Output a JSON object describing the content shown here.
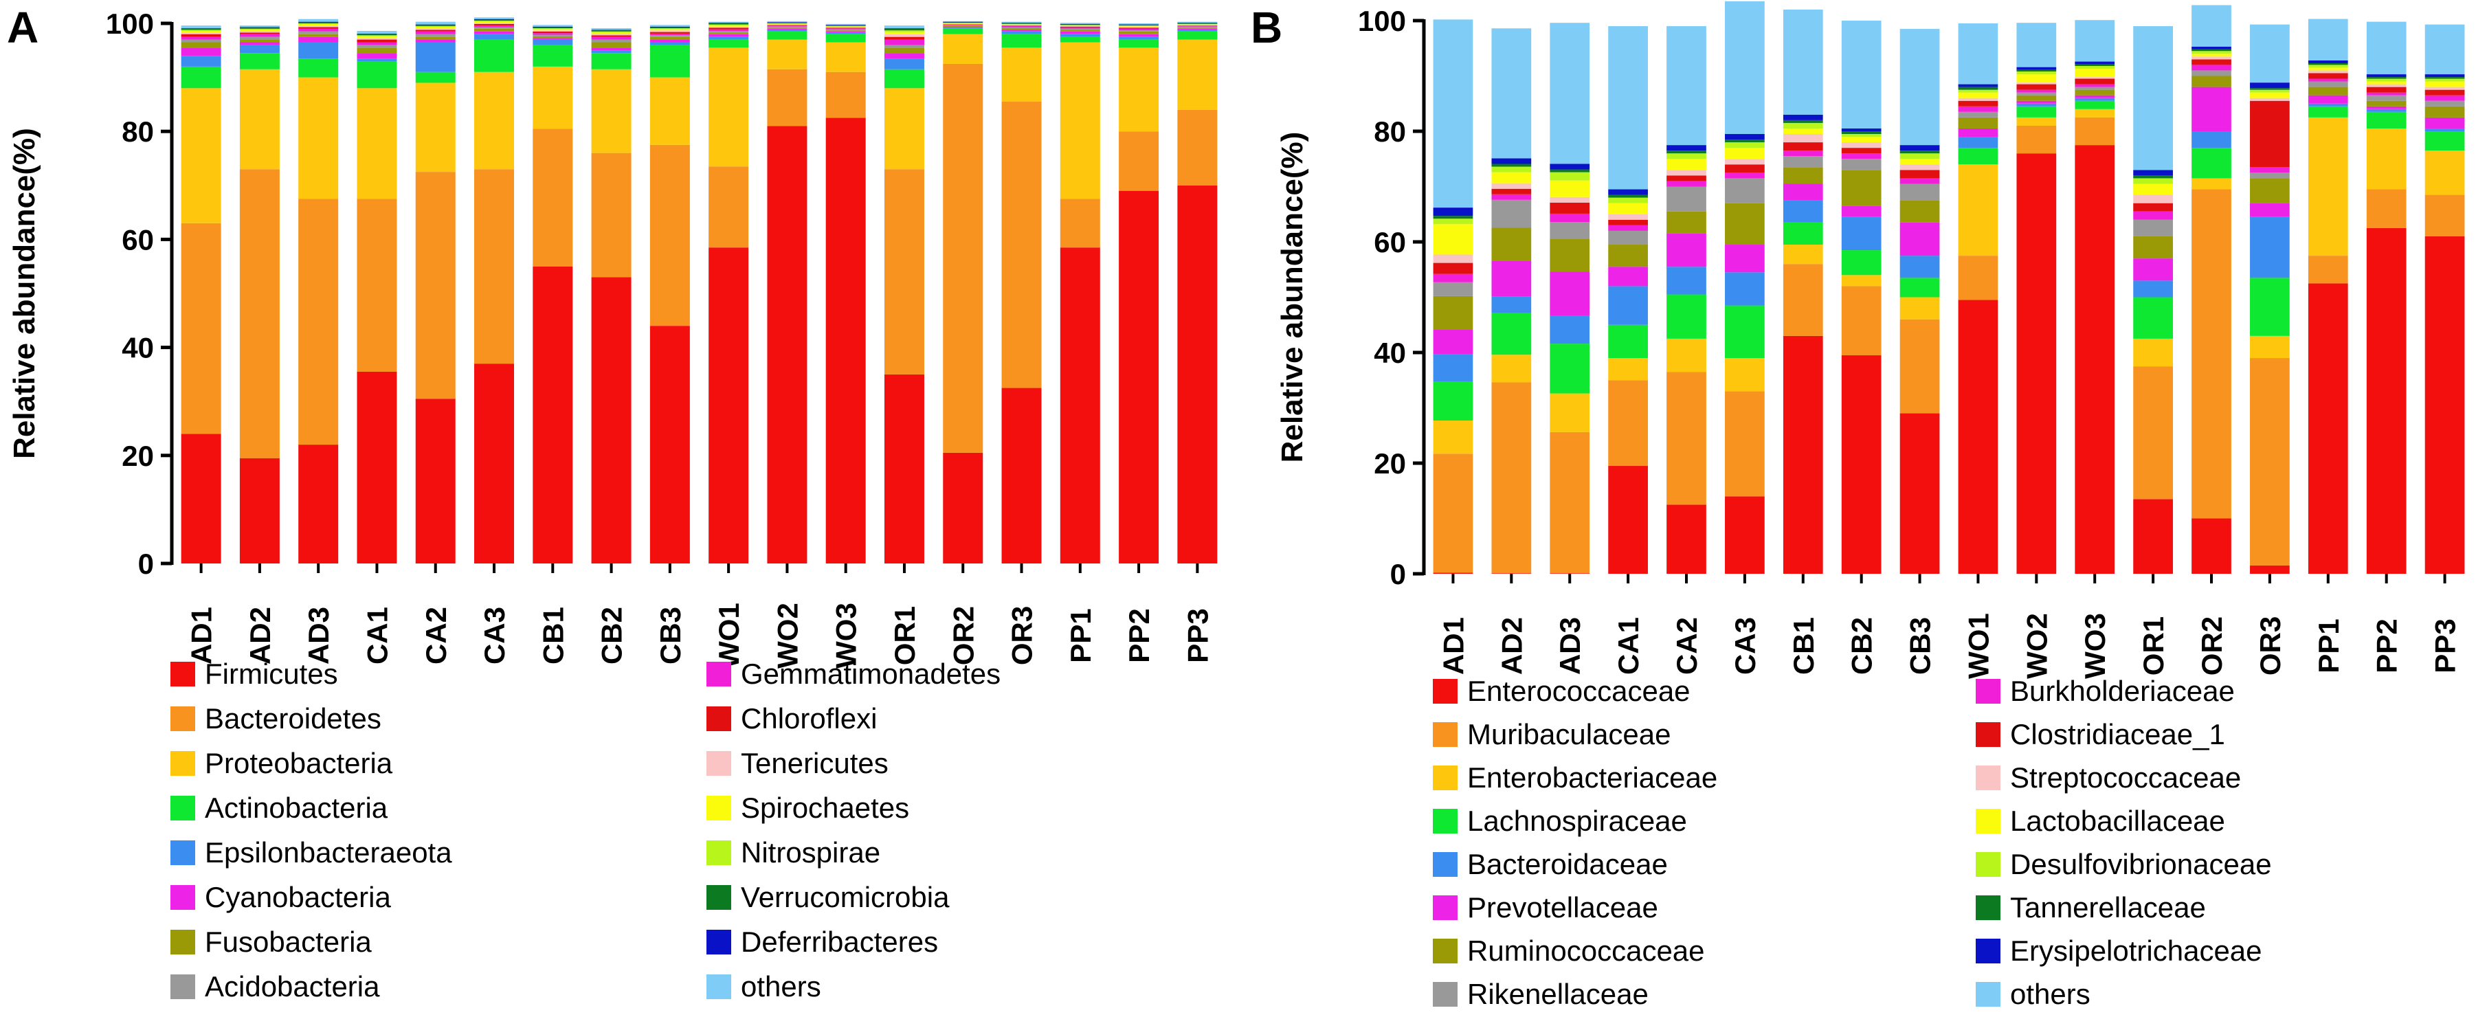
{
  "chart_data": [
    {
      "panel_label": "A",
      "type": "bar",
      "stacked": true,
      "title": "",
      "xlabel": "",
      "ylabel": "Relative abundance(%)",
      "ylim": [
        0,
        100
      ],
      "yticks": [
        0,
        20,
        40,
        60,
        80,
        100
      ],
      "categories": [
        "AD1",
        "AD2",
        "AD3",
        "CA1",
        "CA2",
        "CA3",
        "CB1",
        "CB2",
        "CB3",
        "WO1",
        "WO2",
        "WO3",
        "OR1",
        "OR2",
        "OR3",
        "PP1",
        "PP2",
        "PP3"
      ],
      "series": [
        {
          "name": "Firmicutes",
          "color": "#f40f0f",
          "values": [
            24,
            19.5,
            22,
            35.5,
            30.5,
            37,
            55,
            53,
            44,
            58.5,
            81,
            82.5,
            35,
            20.5,
            32.5,
            58.5,
            69,
            70
          ]
        },
        {
          "name": "Bacteroidetes",
          "color": "#f7931e",
          "values": [
            39,
            53.5,
            45.5,
            32,
            42,
            36,
            25.5,
            23,
            33.5,
            15,
            10.5,
            8.5,
            38,
            72,
            53,
            9,
            11,
            14
          ]
        },
        {
          "name": "Proteobacteria",
          "color": "#fec70e",
          "values": [
            25,
            18.5,
            22.5,
            20.5,
            16.5,
            18,
            11.5,
            15.5,
            12.5,
            22,
            5.5,
            5.5,
            15,
            5.5,
            10,
            29,
            15.5,
            13
          ]
        },
        {
          "name": "Actinobacteria",
          "color": "#0fe830",
          "values": [
            4,
            3,
            3.5,
            5,
            2,
            6,
            4,
            3,
            6,
            1.5,
            1.5,
            1.5,
            3.5,
            1,
            2.5,
            1,
            1.5,
            1.5
          ]
        },
        {
          "name": "Epsilonbacteraeota",
          "color": "#3b8ef0",
          "values": [
            2,
            1.5,
            3,
            0.5,
            5.5,
            1,
            1,
            0.5,
            0.5,
            0.5,
            0.3,
            0.3,
            2,
            0.2,
            0.5,
            0.5,
            0.5,
            0.3
          ]
        },
        {
          "name": "Cyanobacteria",
          "color": "#ee23e8",
          "values": [
            1.5,
            0.5,
            1,
            1,
            0.5,
            0.5,
            0.3,
            0.5,
            0.5,
            0.5,
            0.2,
            0.2,
            1,
            0.1,
            0.3,
            0.5,
            0.5,
            0.2
          ]
        },
        {
          "name": "Fusobacteria",
          "color": "#9a9a07",
          "values": [
            1,
            0.5,
            0.5,
            1,
            0.5,
            0.5,
            0.3,
            1,
            0.5,
            0.3,
            0.2,
            0.2,
            1,
            0.2,
            0.3,
            0.3,
            0.5,
            0.2
          ]
        },
        {
          "name": "Acidobacteria",
          "color": "#999999",
          "values": [
            0.5,
            0.5,
            0.5,
            0.5,
            0.5,
            0.3,
            0.3,
            0.5,
            0.3,
            0.3,
            0.2,
            0.2,
            0.5,
            0.1,
            0.2,
            0.2,
            0.2,
            0.2
          ]
        },
        {
          "name": "Gemmatimonadetes",
          "color": "#f21fd8",
          "values": [
            0.5,
            0.5,
            0.5,
            0.5,
            0.5,
            0.3,
            0.3,
            0.5,
            0.3,
            0.3,
            0.2,
            0.2,
            1,
            0.1,
            0.2,
            0.2,
            0.3,
            0.1
          ]
        },
        {
          "name": "Chloroflexi",
          "color": "#e10f0f",
          "values": [
            0.5,
            0.3,
            0.3,
            0.5,
            0.3,
            0.3,
            0.3,
            0.3,
            0.3,
            0.3,
            0.1,
            0.1,
            0.5,
            0.1,
            0.1,
            0.2,
            0.2,
            0.1
          ]
        },
        {
          "name": "Tenericutes",
          "color": "#fbc4c4",
          "values": [
            0.3,
            0.3,
            0.3,
            0.3,
            0.3,
            0.2,
            0.2,
            0.3,
            0.3,
            0.2,
            0.1,
            0.1,
            0.5,
            0.1,
            0.1,
            0.1,
            0.2,
            0.1
          ]
        },
        {
          "name": "Spirochaetes",
          "color": "#fbfb0c",
          "values": [
            0.3,
            0.2,
            0.2,
            0.3,
            0.2,
            0.2,
            0.2,
            0.2,
            0.2,
            0.2,
            0.1,
            0.1,
            0.4,
            0.1,
            0.1,
            0.1,
            0.1,
            0.1
          ]
        },
        {
          "name": "Nitrospirae",
          "color": "#b8f51b",
          "values": [
            0.2,
            0.2,
            0.2,
            0.2,
            0.2,
            0.2,
            0.2,
            0.2,
            0.2,
            0.2,
            0.1,
            0.1,
            0.3,
            0.1,
            0.1,
            0.1,
            0.1,
            0.1
          ]
        },
        {
          "name": "Verrucomicrobia",
          "color": "#0b7a21",
          "values": [
            0.2,
            0.2,
            0.2,
            0.2,
            0.2,
            0.2,
            0.2,
            0.2,
            0.2,
            0.2,
            0.1,
            0.1,
            0.3,
            0.1,
            0.1,
            0.1,
            0.1,
            0.1
          ]
        },
        {
          "name": "Deferribacteres",
          "color": "#0a12c8",
          "values": [
            0.1,
            0.1,
            0.1,
            0.1,
            0.1,
            0.1,
            0.1,
            0.1,
            0.1,
            0.1,
            0.1,
            0.1,
            0.1,
            0.1,
            0.1,
            0.1,
            0.1,
            0.1
          ]
        },
        {
          "name": "others",
          "color": "#7fccf7",
          "values": [
            0.5,
            0.3,
            0.5,
            0.5,
            0.5,
            0.3,
            0.3,
            0.3,
            0.3,
            0.2,
            0.2,
            0.2,
            0.5,
            0.1,
            0.2,
            0.2,
            0.2,
            0.2
          ]
        }
      ]
    },
    {
      "panel_label": "B",
      "type": "bar",
      "stacked": true,
      "title": "",
      "xlabel": "",
      "ylabel": "Relative abundance(%)",
      "ylim": [
        0,
        100
      ],
      "yticks": [
        0,
        20,
        40,
        60,
        80,
        100
      ],
      "categories": [
        "AD1",
        "AD2",
        "AD3",
        "CA1",
        "CA2",
        "CA3",
        "CB1",
        "CB2",
        "CB3",
        "WO1",
        "WO2",
        "WO3",
        "OR1",
        "OR2",
        "OR3",
        "PP1",
        "PP2",
        "PP3"
      ],
      "series": [
        {
          "name": "Enterococcaceae",
          "color": "#f40f0f",
          "values": [
            0.2,
            0.1,
            0.1,
            19.5,
            12.5,
            14,
            43,
            39.5,
            29,
            49.5,
            76,
            77.5,
            13.5,
            10,
            1.5,
            52.5,
            62.5,
            61
          ]
        },
        {
          "name": "Muribaculaceae",
          "color": "#f7931e",
          "values": [
            21.5,
            34.5,
            25.5,
            15.5,
            24,
            19,
            13,
            12.5,
            17,
            8,
            5,
            5,
            24,
            59.5,
            37.5,
            5,
            7,
            7.5
          ]
        },
        {
          "name": "Enterobacteriaceae",
          "color": "#fec70e",
          "values": [
            6,
            5,
            7,
            4,
            6,
            6,
            3.5,
            2,
            4,
            16.5,
            1.5,
            1.5,
            5,
            2,
            4,
            25,
            11,
            8
          ]
        },
        {
          "name": "Lachnospiraceae",
          "color": "#0fe830",
          "values": [
            7,
            7.5,
            9,
            6,
            8,
            9.5,
            4,
            4.5,
            3.5,
            3,
            2,
            1.5,
            7.5,
            5.5,
            10.5,
            2,
            3,
            3.5
          ]
        },
        {
          "name": "Bacteroidaceae",
          "color": "#3b8ef0",
          "values": [
            5,
            3,
            5,
            7,
            5,
            6,
            4,
            6,
            4,
            2,
            0.5,
            0.5,
            3,
            3,
            11,
            0.5,
            0.5,
            0.5
          ]
        },
        {
          "name": "Prevotellaceae",
          "color": "#ee23e8",
          "values": [
            4.5,
            6.5,
            8,
            3.5,
            6,
            5,
            3,
            2,
            6,
            1.5,
            0.5,
            0.5,
            4,
            8,
            2.5,
            1.5,
            0.5,
            2
          ]
        },
        {
          "name": "Ruminococcaceae",
          "color": "#9a9a07",
          "values": [
            6,
            6,
            6,
            4,
            4,
            7.5,
            3,
            6.5,
            4,
            2,
            1,
            1,
            4,
            2,
            4.5,
            1.5,
            1,
            2
          ]
        },
        {
          "name": "Rikenellaceae",
          "color": "#999999",
          "values": [
            2.5,
            5,
            3,
            2.5,
            4.5,
            4.5,
            2,
            2,
            3,
            1,
            0.5,
            0.5,
            3,
            1,
            1,
            1,
            1,
            1
          ]
        },
        {
          "name": "Burkholderiaceae",
          "color": "#f21fd8",
          "values": [
            1.5,
            1,
            1.5,
            1,
            1,
            1,
            1,
            1,
            1,
            1,
            0.5,
            0.5,
            1.5,
            1,
            1,
            0.5,
            0.5,
            1
          ]
        },
        {
          "name": "Clostridiaceae_1",
          "color": "#e10f0f",
          "values": [
            2,
            1,
            2,
            1,
            1,
            1.5,
            1.5,
            1,
            1.5,
            1,
            1,
            1,
            1.5,
            1,
            12,
            1,
            1,
            1
          ]
        },
        {
          "name": "Streptococcaceae",
          "color": "#fbc4c4",
          "values": [
            1.5,
            1,
            1,
            1,
            1,
            1,
            1.5,
            1,
            1,
            0.5,
            0.3,
            0.3,
            1.5,
            0.5,
            0.5,
            0.5,
            0.5,
            0.5
          ]
        },
        {
          "name": "Lactobacillaceae",
          "color": "#fbfb0c",
          "values": [
            5.5,
            2,
            3,
            2,
            2,
            2,
            1,
            1,
            1,
            1,
            1.5,
            1.5,
            2,
            0.5,
            1,
            0.5,
            0.5,
            1
          ]
        },
        {
          "name": "Desulfovibrionaceae",
          "color": "#b8f51b",
          "values": [
            1,
            1,
            1.5,
            1,
            1,
            1,
            1,
            0.5,
            1,
            0.5,
            0.5,
            0.5,
            1,
            0.5,
            0.5,
            0.5,
            0.5,
            0.5
          ]
        },
        {
          "name": "Tannerellaceae",
          "color": "#0b7a21",
          "values": [
            0.5,
            0.5,
            0.5,
            0.5,
            0.5,
            0.5,
            0.5,
            0.5,
            0.5,
            0.5,
            0.3,
            0.3,
            0.5,
            0.3,
            0.3,
            0.3,
            0.3,
            0.3
          ]
        },
        {
          "name": "Erysipelotrichaceae",
          "color": "#0a12c8",
          "values": [
            1.5,
            1,
            1,
            1,
            1,
            1,
            1,
            0.5,
            1,
            0.5,
            0.5,
            0.5,
            1,
            0.5,
            1,
            0.5,
            0.5,
            0.5
          ]
        },
        {
          "name": "others",
          "color": "#7fccf7",
          "values": [
            34,
            23.5,
            25.5,
            29.5,
            21.5,
            24,
            19,
            19.5,
            21,
            11,
            8,
            7.5,
            26,
            7.5,
            10.5,
            7.5,
            9.5,
            9
          ]
        }
      ]
    }
  ]
}
